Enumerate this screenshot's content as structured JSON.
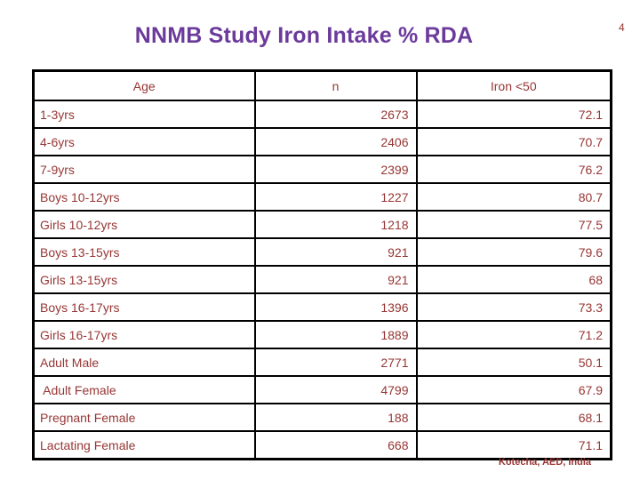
{
  "slide": {
    "page_number": "4",
    "title": "NNMB Study Iron Intake % RDA",
    "footer_credit": "Kotecha, AED, India"
  },
  "table": {
    "headers": [
      "Age",
      "n",
      "Iron <50"
    ],
    "rows": [
      [
        "1-3yrs",
        "2673",
        "72.1"
      ],
      [
        "4-6yrs",
        "2406",
        "70.7"
      ],
      [
        "7-9yrs",
        "2399",
        "76.2"
      ],
      [
        "Boys 10-12yrs",
        "1227",
        "80.7"
      ],
      [
        "Girls 10-12yrs",
        "1218",
        "77.5"
      ],
      [
        "Boys 13-15yrs",
        "921",
        "79.6"
      ],
      [
        "Girls 13-15yrs",
        "921",
        "68"
      ],
      [
        "Boys 16-17yrs",
        "1396",
        "73.3"
      ],
      [
        "Girls 16-17yrs",
        "1889",
        "71.2"
      ],
      [
        "Adult Male",
        "2771",
        "50.1"
      ],
      [
        " Adult Female",
        "4799",
        "67.9"
      ],
      [
        "Pregnant Female",
        "188",
        "68.1"
      ],
      [
        "Lactating Female",
        "668",
        "71.1"
      ]
    ]
  },
  "colors": {
    "title": "#6B3A9B",
    "text": "#963634",
    "border": "#000000",
    "background": "#FFFFFF"
  }
}
